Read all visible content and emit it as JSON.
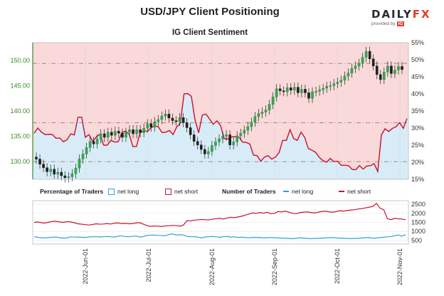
{
  "chart_data": {
    "title": "USD/JPY Client Positioning",
    "subtitle": "IG Client Sentiment",
    "type": "line",
    "price_axis": {
      "ticks": [
        130,
        135,
        140,
        145,
        150
      ],
      "labels": [
        "130.00",
        "135.00",
        "140.00",
        "145.00",
        "150.00"
      ],
      "ylim": [
        126.5,
        153.5
      ]
    },
    "pct_axis": {
      "ticks": [
        15,
        20,
        25,
        30,
        35,
        40,
        45,
        50,
        55
      ],
      "labels": [
        "15%",
        "20%",
        "25%",
        "30%",
        "35%",
        "40%",
        "45%",
        "50%",
        "55%"
      ],
      "ylim": [
        15,
        55
      ]
    },
    "count_axis": {
      "ticks": [
        500,
        1000,
        1500,
        2000,
        2500
      ],
      "labels": [
        "500",
        "1000",
        "1500",
        "2000",
        "2500"
      ],
      "ylim": [
        300,
        2700
      ]
    },
    "x_dates": [
      "2022-Jun-01",
      "2022-Jul-01",
      "2022-Aug-01",
      "2022-Sep-01",
      "2022-Oct-01",
      "2022-Nov-01"
    ],
    "h_lines": [
      149.4,
      137.7,
      130.0
    ],
    "price": [
      130.5,
      129.5,
      128.8,
      128.0,
      128.5,
      127.5,
      127.9,
      127.2,
      126.8,
      127.0,
      127.6,
      128.7,
      130.5,
      131.5,
      132.8,
      134.0,
      133.5,
      134.5,
      135.5,
      134.8,
      135.8,
      135.2,
      136.0,
      135.6,
      134.8,
      135.8,
      136.3,
      135.5,
      136.3,
      135.7,
      136.6,
      137.5,
      136.8,
      137.9,
      138.3,
      139.0,
      139.4,
      138.6,
      138.1,
      137.9,
      138.7,
      137.7,
      136.7,
      135.3,
      134.0,
      133.3,
      132.4,
      131.5,
      132.0,
      133.2,
      133.9,
      134.5,
      135.0,
      135.3,
      133.3,
      133.9,
      135.1,
      135.6,
      136.2,
      136.9,
      137.8,
      138.9,
      139.5,
      139.8,
      140.2,
      141.3,
      142.8,
      144.4,
      144.0,
      143.8,
      144.6,
      144.1,
      144.7,
      143.6,
      144.3,
      143.6,
      142.5,
      143.8,
      143.9,
      144.2,
      144.5,
      144.9,
      145.0,
      145.4,
      145.7,
      146.1,
      146.9,
      147.5,
      148.4,
      148.9,
      149.4,
      150.6,
      151.8,
      150.3,
      148.9,
      147.2,
      146.2,
      147.7,
      148.9,
      147.4,
      148.1,
      148.8,
      148.2
    ],
    "price_dates": [
      "2022-May-20",
      "2022-Jun-01",
      "2022-Jul-01",
      "2022-Aug-01",
      "2022-Sep-01",
      "2022-Oct-01",
      "2022-Nov-01",
      "2022-Nov-04"
    ],
    "pct_net_long": [
      28.5,
      30.0,
      28.8,
      28.1,
      28.2,
      28.1,
      27.0,
      27.1,
      26.0,
      26.6,
      28.3,
      28.0,
      33.2,
      33.2,
      27.3,
      28.1,
      26.1,
      27.4,
      28.2,
      25.0,
      25.0,
      26.4,
      25.9,
      26.0,
      28.7,
      29.1,
      28.2,
      24.6,
      24.6,
      28.8,
      29.2,
      29.0,
      30.1,
      30.7,
      30.3,
      28.7,
      28.8,
      29.3,
      28.1,
      30.3,
      31.4,
      40.0,
      40.1,
      39.3,
      32.4,
      28.6,
      33.8,
      34.1,
      32.6,
      31.1,
      32.1,
      30.7,
      26.9,
      26.8,
      27.4,
      27.5,
      27.4,
      25.9,
      25.8,
      25.3,
      22.1,
      21.9,
      20.3,
      21.5,
      21.9,
      20.9,
      21.5,
      22.8,
      26.4,
      26.4,
      29.5,
      26.9,
      26.4,
      28.8,
      27.3,
      24.0,
      23.5,
      22.9,
      21.4,
      20.5,
      20.0,
      21.1,
      20.2,
      20.3,
      19.1,
      19.1,
      19.0,
      17.9,
      17.8,
      19.0,
      18.0,
      18.9,
      19.0,
      19.6,
      17.3,
      28.0,
      29.8,
      29.0,
      29.9,
      30.4,
      31.6,
      29.9,
      32.8
    ],
    "num_net_long": [
      700,
      675,
      650,
      645,
      660,
      680,
      690,
      650,
      630,
      640,
      700,
      690,
      685,
      680,
      660,
      690,
      700,
      710,
      690,
      705,
      720,
      700,
      690,
      730,
      760,
      710,
      700,
      730,
      745,
      690,
      710,
      780,
      790,
      800,
      780,
      770,
      760,
      830,
      860,
      800,
      820,
      800,
      720,
      700,
      710,
      680,
      640,
      690,
      705,
      720,
      700,
      680,
      710,
      720,
      690,
      700,
      670,
      680,
      660,
      650,
      670,
      660,
      670,
      640,
      650,
      660,
      650,
      640,
      630,
      620,
      610,
      600,
      620,
      650,
      630,
      610,
      600,
      610,
      620,
      630,
      640,
      650,
      660,
      640,
      630,
      620,
      610,
      600,
      610,
      620,
      640,
      650,
      660,
      620,
      640,
      660,
      680,
      700,
      710,
      760,
      800,
      740,
      820
    ],
    "num_net_short": [
      1500,
      1520,
      1480,
      1460,
      1510,
      1550,
      1560,
      1520,
      1500,
      1540,
      1530,
      1480,
      1420,
      1400,
      1380,
      1350,
      1380,
      1420,
      1400,
      1410,
      1430,
      1410,
      1450,
      1470,
      1430,
      1440,
      1420,
      1430,
      1470,
      1480,
      1400,
      1320,
      1280,
      1300,
      1290,
      1270,
      1300,
      1310,
      1330,
      1320,
      1290,
      1350,
      1600,
      1580,
      1620,
      1640,
      1660,
      1650,
      1630,
      1680,
      1700,
      1720,
      1680,
      1740,
      1780,
      1760,
      1800,
      1840,
      1900,
      1960,
      2020,
      2000,
      2040,
      2010,
      2060,
      1980,
      2000,
      2100,
      2080,
      2120,
      2060,
      2000,
      1980,
      2040,
      2060,
      2080,
      2040,
      2020,
      2060,
      2100,
      2120,
      2080,
      2060,
      2100,
      2140,
      2120,
      2160,
      2180,
      2200,
      2240,
      2260,
      2300,
      2340,
      2380,
      2550,
      2280,
      2200,
      1700,
      1650,
      1720,
      1700,
      1680,
      1650
    ]
  },
  "legend": {
    "pct_label": "Percentage of Traders",
    "pct_long": "net long",
    "pct_short": "net short",
    "num_label": "Number of Traders",
    "num_long": "net long",
    "num_short": "net short"
  },
  "logo": {
    "main_a": "DAILY",
    "main_b": "FX",
    "sub": "provided by",
    "badge": "IG"
  },
  "colors": {
    "short_line": "#c8102e",
    "long_line": "#2aa2d6",
    "short_fill": "#f9d9d9",
    "long_fill": "#d8ecf8",
    "price_axis": "#3a8a2a",
    "grid": "#cfcfcf"
  }
}
